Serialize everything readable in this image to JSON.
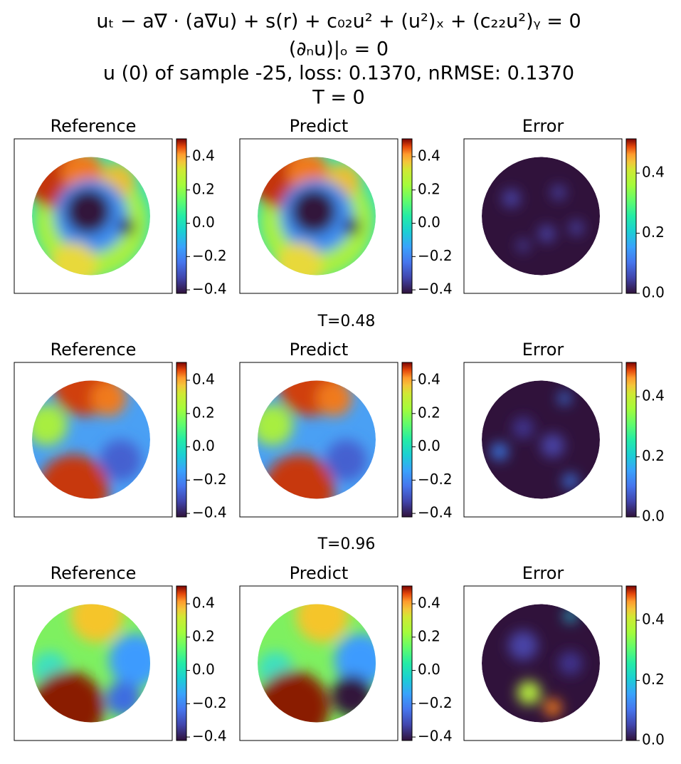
{
  "figure": {
    "title_lines": [
      "uₜ − a∇ · (a∇u) + s(r) + c₀₂u² + (u²)ₓ + (c₂₂u²)ᵧ = 0",
      "(∂ₙu)|ₒ = 0",
      "u (0) of sample -25, loss: 0.1370, nRMSE: 0.1370",
      "T = 0"
    ],
    "row_titles": [
      "T=0.48",
      "T=0.96"
    ]
  },
  "chart_data": [
    {
      "type": "heatmap",
      "title": "Reference",
      "colormap": "turbo",
      "clim": [
        -0.421,
        0.507
      ],
      "cticks": [
        0.4,
        0.2,
        {
          "value": 0,
          "label": "0.0"
        },
        {
          "value": -0.2,
          "label": "−0.2"
        },
        {
          "value": -0.4,
          "label": "−0.4"
        }
      ]
    },
    {
      "type": "heatmap",
      "title": "Predict",
      "colormap": "turbo",
      "clim": [
        -0.421,
        0.507
      ],
      "cticks": [
        0.4,
        0.2,
        {
          "value": 0,
          "label": "0.0"
        },
        {
          "value": -0.2,
          "label": "−0.2"
        },
        {
          "value": -0.4,
          "label": "−0.4"
        }
      ]
    },
    {
      "type": "heatmap",
      "title": "Error",
      "colormap": "turbo",
      "clim": [
        0,
        0.514
      ],
      "cticks": [
        0.4,
        0.2,
        {
          "value": 0,
          "label": "0.0"
        }
      ]
    },
    {
      "type": "heatmap",
      "title": "Reference",
      "colormap": "turbo",
      "clim": [
        -0.421,
        0.507
      ],
      "cticks": [
        0.4,
        0.2,
        {
          "value": 0,
          "label": "0.0"
        },
        {
          "value": -0.2,
          "label": "−0.2"
        },
        {
          "value": -0.4,
          "label": "−0.4"
        }
      ]
    },
    {
      "type": "heatmap",
      "title": "Predict",
      "colormap": "turbo",
      "clim": [
        -0.421,
        0.507
      ],
      "cticks": [
        0.4,
        0.2,
        {
          "value": 0,
          "label": "0.0"
        },
        {
          "value": -0.2,
          "label": "−0.2"
        },
        {
          "value": -0.4,
          "label": "−0.4"
        }
      ]
    },
    {
      "type": "heatmap",
      "title": "Error",
      "colormap": "turbo",
      "clim": [
        0,
        0.514
      ],
      "cticks": [
        0.4,
        0.2,
        {
          "value": 0,
          "label": "0.0"
        }
      ]
    },
    {
      "type": "heatmap",
      "title": "Reference",
      "colormap": "turbo",
      "clim": [
        -0.421,
        0.507
      ],
      "cticks": [
        0.4,
        0.2,
        {
          "value": 0,
          "label": "0.0"
        },
        {
          "value": -0.2,
          "label": "−0.2"
        },
        {
          "value": -0.4,
          "label": "−0.4"
        }
      ]
    },
    {
      "type": "heatmap",
      "title": "Predict",
      "colormap": "turbo",
      "clim": [
        -0.421,
        0.507
      ],
      "cticks": [
        0.4,
        0.2,
        {
          "value": 0,
          "label": "0.0"
        },
        {
          "value": -0.2,
          "label": "−0.2"
        },
        {
          "value": -0.4,
          "label": "−0.4"
        }
      ]
    },
    {
      "type": "heatmap",
      "title": "Error",
      "colormap": "turbo",
      "clim": [
        0,
        0.514
      ],
      "cticks": [
        0.4,
        0.2,
        {
          "value": 0,
          "label": "0.0"
        }
      ]
    }
  ]
}
